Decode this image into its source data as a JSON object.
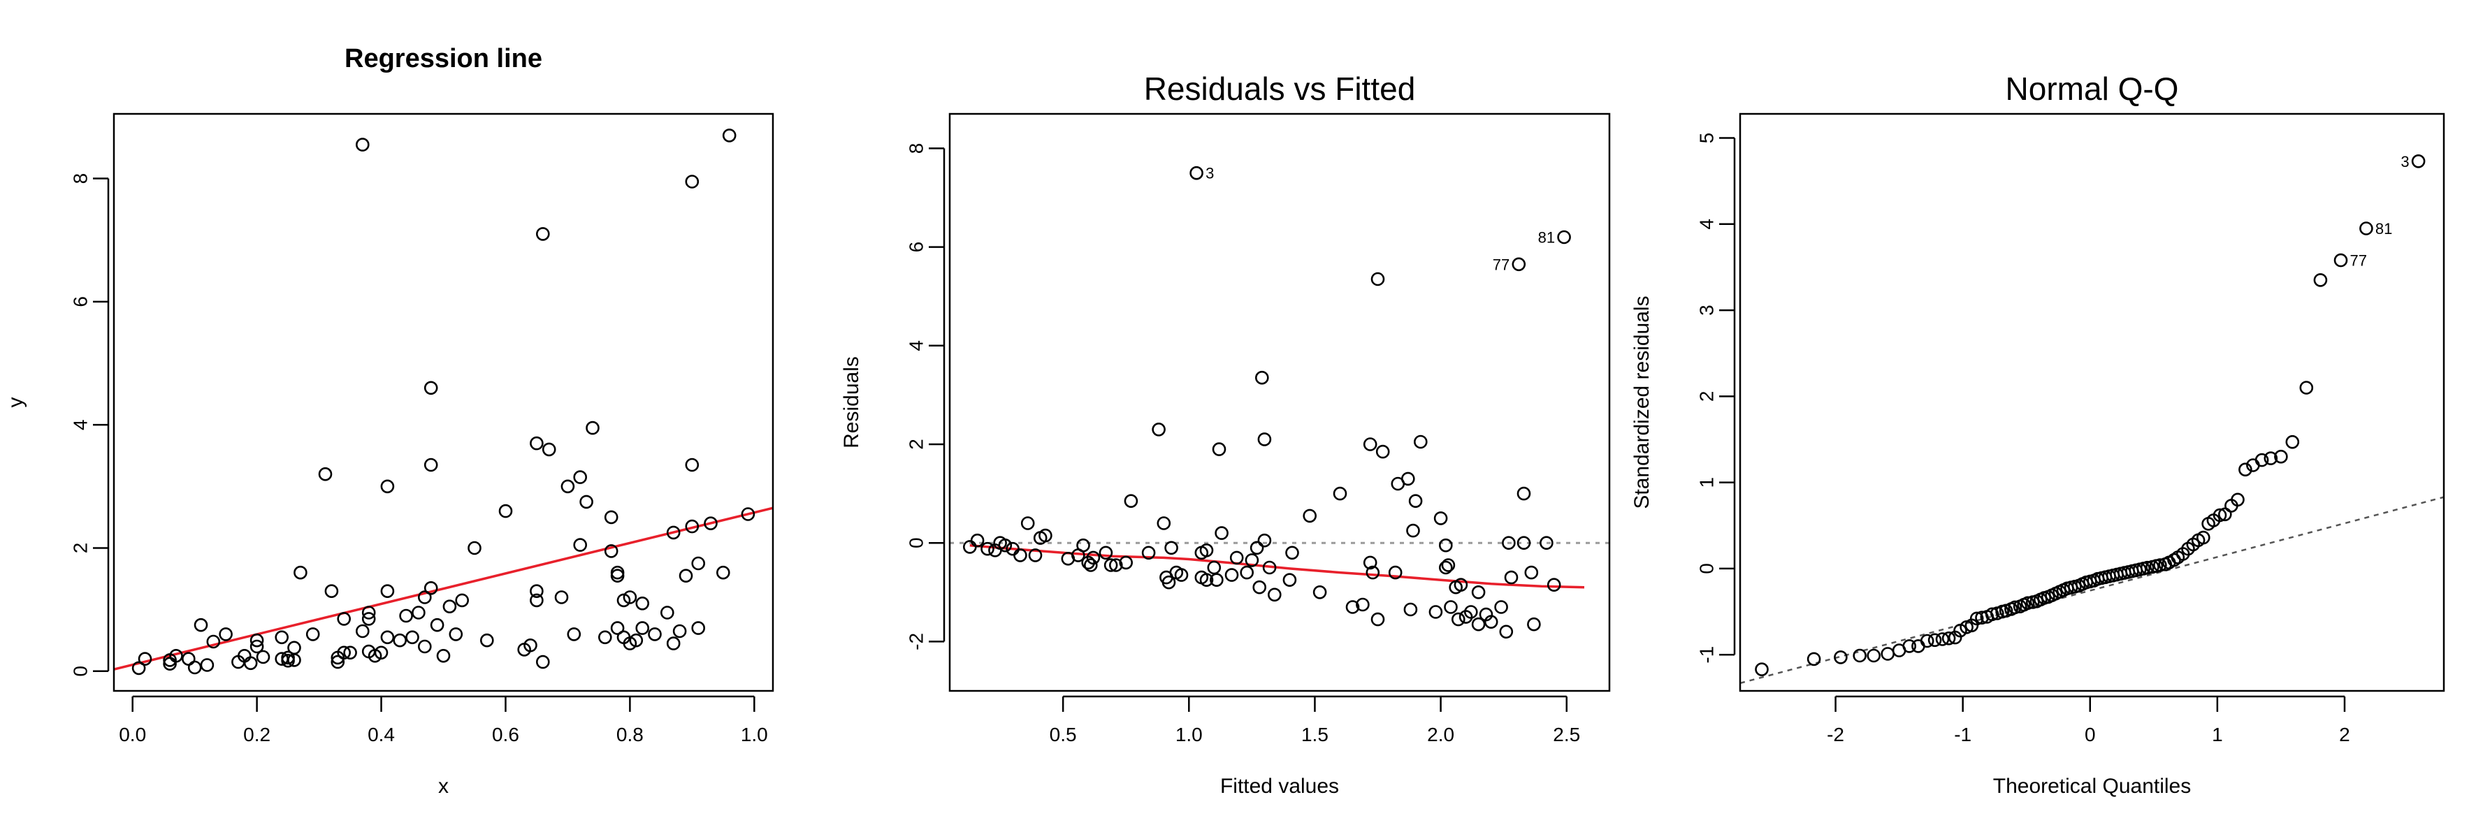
{
  "chart_data": [
    {
      "id": "regression",
      "type": "scatter",
      "title": "Regression line",
      "xlabel": "x",
      "ylabel": "y",
      "xlim": [
        -0.03,
        1.03
      ],
      "ylim": [
        -0.32,
        9.05
      ],
      "xticks": [
        0.0,
        0.2,
        0.4,
        0.6,
        0.8,
        1.0
      ],
      "xtick_labels": [
        "0.0",
        "0.2",
        "0.4",
        "0.6",
        "0.8",
        "1.0"
      ],
      "yticks": [
        0,
        2,
        4,
        6,
        8
      ],
      "ytick_labels": [
        "0",
        "2",
        "4",
        "6",
        "8"
      ],
      "fit_line": {
        "x": [
          -0.03,
          1.03
        ],
        "y": [
          0.03,
          2.65
        ],
        "color": "#e8202b"
      },
      "points": [
        [
          0.01,
          0.05
        ],
        [
          0.02,
          0.2
        ],
        [
          0.06,
          0.12
        ],
        [
          0.06,
          0.18
        ],
        [
          0.07,
          0.25
        ],
        [
          0.09,
          0.2
        ],
        [
          0.1,
          0.06
        ],
        [
          0.11,
          0.75
        ],
        [
          0.12,
          0.1
        ],
        [
          0.13,
          0.48
        ],
        [
          0.15,
          0.6
        ],
        [
          0.17,
          0.15
        ],
        [
          0.18,
          0.25
        ],
        [
          0.19,
          0.13
        ],
        [
          0.2,
          0.5
        ],
        [
          0.2,
          0.4
        ],
        [
          0.21,
          0.23
        ],
        [
          0.24,
          0.55
        ],
        [
          0.24,
          0.2
        ],
        [
          0.25,
          0.17
        ],
        [
          0.25,
          0.22
        ],
        [
          0.26,
          0.18
        ],
        [
          0.26,
          0.38
        ],
        [
          0.27,
          1.6
        ],
        [
          0.29,
          0.6
        ],
        [
          0.31,
          3.2
        ],
        [
          0.32,
          1.3
        ],
        [
          0.33,
          0.15
        ],
        [
          0.33,
          0.22
        ],
        [
          0.34,
          0.3
        ],
        [
          0.34,
          0.85
        ],
        [
          0.35,
          0.3
        ],
        [
          0.37,
          0.65
        ],
        [
          0.37,
          8.55
        ],
        [
          0.38,
          0.85
        ],
        [
          0.38,
          0.32
        ],
        [
          0.38,
          0.95
        ],
        [
          0.39,
          0.25
        ],
        [
          0.4,
          0.3
        ],
        [
          0.41,
          0.55
        ],
        [
          0.41,
          1.3
        ],
        [
          0.41,
          3.0
        ],
        [
          0.43,
          0.5
        ],
        [
          0.44,
          0.9
        ],
        [
          0.45,
          0.55
        ],
        [
          0.46,
          0.95
        ],
        [
          0.47,
          0.4
        ],
        [
          0.47,
          1.2
        ],
        [
          0.48,
          1.35
        ],
        [
          0.48,
          4.6
        ],
        [
          0.48,
          3.35
        ],
        [
          0.49,
          0.75
        ],
        [
          0.5,
          0.25
        ],
        [
          0.51,
          1.05
        ],
        [
          0.52,
          0.6
        ],
        [
          0.53,
          1.15
        ],
        [
          0.55,
          2.0
        ],
        [
          0.57,
          0.5
        ],
        [
          0.6,
          2.6
        ],
        [
          0.63,
          0.35
        ],
        [
          0.64,
          0.42
        ],
        [
          0.65,
          1.3
        ],
        [
          0.65,
          1.15
        ],
        [
          0.65,
          3.7
        ],
        [
          0.66,
          0.15
        ],
        [
          0.66,
          7.1
        ],
        [
          0.67,
          3.6
        ],
        [
          0.69,
          1.2
        ],
        [
          0.7,
          3.0
        ],
        [
          0.71,
          0.6
        ],
        [
          0.72,
          3.15
        ],
        [
          0.72,
          2.05
        ],
        [
          0.73,
          2.75
        ],
        [
          0.74,
          3.95
        ],
        [
          0.76,
          0.55
        ],
        [
          0.77,
          1.95
        ],
        [
          0.77,
          2.5
        ],
        [
          0.78,
          0.7
        ],
        [
          0.78,
          1.55
        ],
        [
          0.78,
          1.6
        ],
        [
          0.79,
          0.55
        ],
        [
          0.79,
          1.15
        ],
        [
          0.8,
          0.45
        ],
        [
          0.8,
          1.2
        ],
        [
          0.81,
          0.5
        ],
        [
          0.82,
          0.7
        ],
        [
          0.82,
          1.1
        ],
        [
          0.84,
          0.6
        ],
        [
          0.86,
          0.95
        ],
        [
          0.87,
          0.45
        ],
        [
          0.87,
          2.25
        ],
        [
          0.88,
          0.65
        ],
        [
          0.89,
          1.55
        ],
        [
          0.9,
          2.35
        ],
        [
          0.9,
          3.35
        ],
        [
          0.9,
          7.95
        ],
        [
          0.91,
          0.7
        ],
        [
          0.91,
          1.75
        ],
        [
          0.93,
          2.4
        ],
        [
          0.95,
          1.6
        ],
        [
          0.96,
          8.7
        ],
        [
          0.99,
          2.55
        ]
      ]
    },
    {
      "id": "residuals",
      "type": "scatter",
      "title": "Residuals vs Fitted",
      "xlabel": "Fitted values",
      "ylabel": "Residuals",
      "xlim": [
        0.05,
        2.67
      ],
      "ylim": [
        -3.0,
        8.7
      ],
      "xticks": [
        0.5,
        1.0,
        1.5,
        2.0,
        2.5
      ],
      "xtick_labels": [
        "0.5",
        "1.0",
        "1.5",
        "2.0",
        "2.5"
      ],
      "yticks": [
        -2,
        0,
        2,
        4,
        6,
        8
      ],
      "ytick_labels": [
        "-2",
        "0",
        "2",
        "4",
        "6",
        "8"
      ],
      "zero_line": 0,
      "smooth_line": {
        "color": "#e8202b",
        "points": [
          [
            0.13,
            -0.05
          ],
          [
            0.3,
            -0.12
          ],
          [
            0.5,
            -0.2
          ],
          [
            0.7,
            -0.27
          ],
          [
            0.9,
            -0.3
          ],
          [
            1.0,
            -0.33
          ],
          [
            1.2,
            -0.42
          ],
          [
            1.4,
            -0.52
          ],
          [
            1.6,
            -0.6
          ],
          [
            1.8,
            -0.67
          ],
          [
            2.0,
            -0.75
          ],
          [
            2.2,
            -0.83
          ],
          [
            2.4,
            -0.88
          ],
          [
            2.57,
            -0.9
          ]
        ]
      },
      "labels": [
        {
          "text": "3",
          "x": 1.03,
          "y": 7.5
        },
        {
          "text": "81",
          "x": 2.49,
          "y": 6.2
        },
        {
          "text": "77",
          "x": 2.31,
          "y": 5.65
        }
      ],
      "points": [
        [
          0.13,
          -0.08
        ],
        [
          0.16,
          0.05
        ],
        [
          0.2,
          -0.12
        ],
        [
          0.23,
          -0.15
        ],
        [
          0.25,
          0.0
        ],
        [
          0.27,
          -0.05
        ],
        [
          0.3,
          -0.12
        ],
        [
          0.33,
          -0.25
        ],
        [
          0.36,
          0.4
        ],
        [
          0.39,
          -0.25
        ],
        [
          0.41,
          0.1
        ],
        [
          0.43,
          0.15
        ],
        [
          0.52,
          -0.32
        ],
        [
          0.56,
          -0.25
        ],
        [
          0.58,
          -0.05
        ],
        [
          0.6,
          -0.4
        ],
        [
          0.61,
          -0.45
        ],
        [
          0.62,
          -0.3
        ],
        [
          0.67,
          -0.2
        ],
        [
          0.69,
          -0.45
        ],
        [
          0.71,
          -0.45
        ],
        [
          0.75,
          -0.4
        ],
        [
          0.77,
          0.85
        ],
        [
          0.84,
          -0.2
        ],
        [
          0.88,
          2.3
        ],
        [
          0.9,
          0.4
        ],
        [
          0.91,
          -0.7
        ],
        [
          0.92,
          -0.8
        ],
        [
          0.93,
          -0.1
        ],
        [
          0.95,
          -0.6
        ],
        [
          0.97,
          -0.65
        ],
        [
          1.03,
          7.5
        ],
        [
          1.05,
          -0.2
        ],
        [
          1.05,
          -0.7
        ],
        [
          1.07,
          -0.15
        ],
        [
          1.07,
          -0.75
        ],
        [
          1.1,
          -0.5
        ],
        [
          1.11,
          -0.75
        ],
        [
          1.12,
          1.9
        ],
        [
          1.13,
          0.2
        ],
        [
          1.17,
          -0.65
        ],
        [
          1.19,
          -0.3
        ],
        [
          1.23,
          -0.6
        ],
        [
          1.25,
          -0.35
        ],
        [
          1.27,
          -0.1
        ],
        [
          1.28,
          -0.9
        ],
        [
          1.29,
          3.35
        ],
        [
          1.3,
          2.1
        ],
        [
          1.3,
          0.05
        ],
        [
          1.32,
          -0.5
        ],
        [
          1.34,
          -1.05
        ],
        [
          1.4,
          -0.75
        ],
        [
          1.41,
          -0.2
        ],
        [
          1.48,
          0.55
        ],
        [
          1.52,
          -1.0
        ],
        [
          1.6,
          1.0
        ],
        [
          1.65,
          -1.3
        ],
        [
          1.69,
          -1.25
        ],
        [
          1.72,
          2.0
        ],
        [
          1.72,
          -0.4
        ],
        [
          1.73,
          -0.6
        ],
        [
          1.75,
          5.35
        ],
        [
          1.75,
          -1.55
        ],
        [
          1.77,
          1.85
        ],
        [
          1.82,
          -0.6
        ],
        [
          1.83,
          1.2
        ],
        [
          1.87,
          1.3
        ],
        [
          1.88,
          -1.35
        ],
        [
          1.89,
          0.25
        ],
        [
          1.9,
          0.85
        ],
        [
          1.92,
          2.05
        ],
        [
          1.98,
          -1.4
        ],
        [
          2.0,
          0.5
        ],
        [
          2.02,
          -0.05
        ],
        [
          2.02,
          -0.5
        ],
        [
          2.03,
          -0.45
        ],
        [
          2.04,
          -1.3
        ],
        [
          2.06,
          -0.9
        ],
        [
          2.07,
          -1.55
        ],
        [
          2.08,
          -0.85
        ],
        [
          2.1,
          -1.5
        ],
        [
          2.12,
          -1.4
        ],
        [
          2.15,
          -1.65
        ],
        [
          2.15,
          -1.0
        ],
        [
          2.18,
          -1.45
        ],
        [
          2.2,
          -1.6
        ],
        [
          2.24,
          -1.3
        ],
        [
          2.26,
          -1.8
        ],
        [
          2.27,
          0.0
        ],
        [
          2.28,
          -0.7
        ],
        [
          2.31,
          5.65
        ],
        [
          2.33,
          1.0
        ],
        [
          2.33,
          0.0
        ],
        [
          2.36,
          -0.6
        ],
        [
          2.37,
          -1.65
        ],
        [
          2.42,
          0.0
        ],
        [
          2.45,
          -0.85
        ],
        [
          2.49,
          6.2
        ]
      ]
    },
    {
      "id": "qq",
      "type": "scatter",
      "title": "Normal Q-Q",
      "xlabel": "Theoretical Quantiles",
      "ylabel": "Standardized residuals",
      "xlim": [
        -2.75,
        2.78
      ],
      "ylim": [
        -1.42,
        5.28
      ],
      "xticks": [
        -2,
        -1,
        0,
        1,
        2
      ],
      "xtick_labels": [
        "-2",
        "-1",
        "0",
        "1",
        "2"
      ],
      "yticks": [
        -1,
        0,
        1,
        2,
        3,
        4,
        5
      ],
      "ytick_labels": [
        "-1",
        "0",
        "1",
        "2",
        "3",
        "4",
        "5"
      ],
      "reference_line": {
        "x": [
          -2.75,
          2.78
        ],
        "y": [
          -1.33,
          0.83
        ]
      },
      "labels": [
        {
          "text": "3",
          "x": 2.58,
          "y": 4.73
        },
        {
          "text": "81",
          "x": 2.17,
          "y": 3.95
        },
        {
          "text": "77",
          "x": 1.97,
          "y": 3.58
        }
      ],
      "points": [
        [
          -2.58,
          -1.17
        ],
        [
          -2.17,
          -1.05
        ],
        [
          -1.96,
          -1.03
        ],
        [
          -1.81,
          -1.01
        ],
        [
          -1.7,
          -1.01
        ],
        [
          -1.59,
          -0.99
        ],
        [
          -1.5,
          -0.95
        ],
        [
          -1.42,
          -0.9
        ],
        [
          -1.35,
          -0.9
        ],
        [
          -1.28,
          -0.84
        ],
        [
          -1.22,
          -0.83
        ],
        [
          -1.16,
          -0.82
        ],
        [
          -1.11,
          -0.81
        ],
        [
          -1.06,
          -0.8
        ],
        [
          -1.02,
          -0.72
        ],
        [
          -0.97,
          -0.68
        ],
        [
          -0.93,
          -0.66
        ],
        [
          -0.89,
          -0.58
        ],
        [
          -0.85,
          -0.57
        ],
        [
          -0.81,
          -0.56
        ],
        [
          -0.77,
          -0.53
        ],
        [
          -0.73,
          -0.52
        ],
        [
          -0.69,
          -0.5
        ],
        [
          -0.66,
          -0.49
        ],
        [
          -0.62,
          -0.47
        ],
        [
          -0.59,
          -0.45
        ],
        [
          -0.55,
          -0.44
        ],
        [
          -0.52,
          -0.42
        ],
        [
          -0.49,
          -0.4
        ],
        [
          -0.45,
          -0.39
        ],
        [
          -0.42,
          -0.38
        ],
        [
          -0.39,
          -0.36
        ],
        [
          -0.36,
          -0.34
        ],
        [
          -0.33,
          -0.33
        ],
        [
          -0.3,
          -0.31
        ],
        [
          -0.27,
          -0.29
        ],
        [
          -0.24,
          -0.27
        ],
        [
          -0.21,
          -0.25
        ],
        [
          -0.18,
          -0.23
        ],
        [
          -0.15,
          -0.22
        ],
        [
          -0.12,
          -0.21
        ],
        [
          -0.09,
          -0.2
        ],
        [
          -0.06,
          -0.18
        ],
        [
          -0.03,
          -0.16
        ],
        [
          0.0,
          -0.15
        ],
        [
          0.03,
          -0.14
        ],
        [
          0.06,
          -0.12
        ],
        [
          0.09,
          -0.11
        ],
        [
          0.12,
          -0.1
        ],
        [
          0.15,
          -0.09
        ],
        [
          0.18,
          -0.08
        ],
        [
          0.21,
          -0.07
        ],
        [
          0.24,
          -0.06
        ],
        [
          0.27,
          -0.05
        ],
        [
          0.3,
          -0.04
        ],
        [
          0.33,
          -0.03
        ],
        [
          0.36,
          -0.02
        ],
        [
          0.39,
          -0.01
        ],
        [
          0.42,
          0.0
        ],
        [
          0.45,
          0.01
        ],
        [
          0.49,
          0.02
        ],
        [
          0.52,
          0.03
        ],
        [
          0.55,
          0.04
        ],
        [
          0.59,
          0.05
        ],
        [
          0.62,
          0.07
        ],
        [
          0.66,
          0.1
        ],
        [
          0.69,
          0.13
        ],
        [
          0.73,
          0.17
        ],
        [
          0.77,
          0.23
        ],
        [
          0.81,
          0.28
        ],
        [
          0.85,
          0.33
        ],
        [
          0.89,
          0.36
        ],
        [
          0.93,
          0.52
        ],
        [
          0.97,
          0.56
        ],
        [
          1.02,
          0.62
        ],
        [
          1.06,
          0.63
        ],
        [
          1.11,
          0.73
        ],
        [
          1.16,
          0.8
        ],
        [
          1.22,
          1.15
        ],
        [
          1.28,
          1.2
        ],
        [
          1.35,
          1.26
        ],
        [
          1.42,
          1.28
        ],
        [
          1.5,
          1.3
        ],
        [
          1.59,
          1.47
        ],
        [
          1.7,
          2.1
        ],
        [
          1.81,
          3.35
        ],
        [
          1.97,
          3.58
        ],
        [
          2.17,
          3.95
        ],
        [
          2.58,
          4.73
        ]
      ]
    }
  ]
}
